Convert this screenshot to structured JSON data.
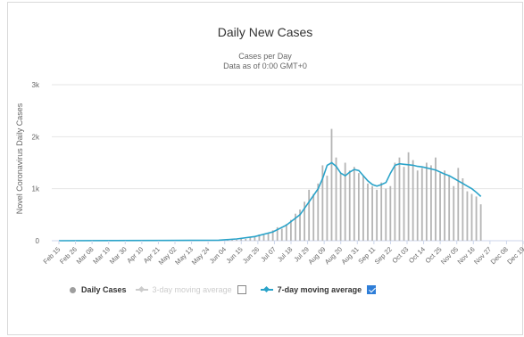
{
  "chart_data": {
    "type": "bar",
    "title": "Daily New Cases",
    "subtitle_lines": [
      "Cases per Day",
      "Data as of 0:00 GMT+0"
    ],
    "ylabel": "Novel Coronavirus Daily Cases",
    "ylim": [
      0,
      3000
    ],
    "yticks": [
      {
        "value": 0,
        "label": "0"
      },
      {
        "value": 1000,
        "label": "1k"
      },
      {
        "value": 2000,
        "label": "2k"
      },
      {
        "value": 3000,
        "label": "3k"
      }
    ],
    "grid": true,
    "categories": [
      "Feb 15",
      "Feb 26",
      "Mar 08",
      "Mar 19",
      "Mar 30",
      "Apr 10",
      "Apr 21",
      "May 02",
      "May 13",
      "May 24",
      "Jun 04",
      "Jun 15",
      "Jun 26",
      "Jul 07",
      "Jul 18",
      "Jul 29",
      "Aug 09",
      "Aug 20",
      "Aug 31",
      "Sep 11",
      "Sep 22",
      "Oct 03",
      "Oct 14",
      "Oct 25",
      "Nov 05",
      "Nov 16",
      "Nov 27",
      "Dec 08",
      "Dec 19"
    ],
    "series": [
      {
        "name": "Daily Cases",
        "color": "#b5b5b5",
        "x": [
          192,
          195,
          198,
          201,
          204,
          207,
          210,
          213,
          216,
          219,
          222,
          225,
          228,
          231,
          234,
          237,
          240,
          243,
          246,
          249,
          252,
          255,
          258,
          261,
          264,
          267,
          270,
          273,
          276,
          279,
          282,
          285,
          288,
          291,
          294,
          297,
          300,
          303,
          306,
          309,
          312,
          315,
          318,
          321,
          324,
          327,
          330,
          333,
          336,
          339,
          342,
          345,
          348,
          351,
          354,
          357,
          360
        ],
        "values": [
          10,
          25,
          20,
          40,
          35,
          60,
          80,
          120,
          110,
          150,
          200,
          260,
          230,
          320,
          400,
          520,
          600,
          750,
          980,
          900,
          1100,
          1450,
          1250,
          2150,
          1600,
          1300,
          1500,
          1350,
          1420,
          1300,
          1250,
          1100,
          1050,
          980,
          1120,
          1000,
          1050,
          1500,
          1600,
          1420,
          1700,
          1550,
          1350,
          1400,
          1500,
          1450,
          1600,
          1300,
          1350,
          1250,
          1050,
          1400,
          1200,
          950,
          900,
          850,
          700
        ]
      },
      {
        "name": "3-day moving average",
        "color": "#cccccc",
        "hidden": true
      },
      {
        "name": "7-day moving average",
        "color": "#2aa3c9",
        "x": [
          80,
          150,
          186,
          198,
          210,
          222,
          231,
          240,
          246,
          252,
          255,
          258,
          261,
          264,
          267,
          270,
          273,
          276,
          279,
          282,
          285,
          288,
          291,
          294,
          297,
          300,
          303,
          306,
          309,
          312,
          315,
          318,
          321,
          324,
          327,
          330,
          333,
          336,
          339,
          342,
          345,
          348,
          351,
          354,
          357,
          360
        ],
        "values": [
          0,
          5,
          10,
          35,
          80,
          170,
          300,
          500,
          750,
          1000,
          1200,
          1450,
          1500,
          1430,
          1300,
          1250,
          1320,
          1370,
          1350,
          1250,
          1150,
          1080,
          1050,
          1080,
          1120,
          1300,
          1450,
          1480,
          1470,
          1460,
          1450,
          1430,
          1420,
          1400,
          1380,
          1360,
          1320,
          1280,
          1250,
          1200,
          1150,
          1100,
          1050,
          1000,
          930,
          850
        ]
      }
    ],
    "legend": [
      {
        "label": "Daily Cases",
        "state": "on"
      },
      {
        "label": "3-day moving average",
        "state": "off"
      },
      {
        "label": "7-day moving average",
        "state": "on"
      }
    ]
  }
}
